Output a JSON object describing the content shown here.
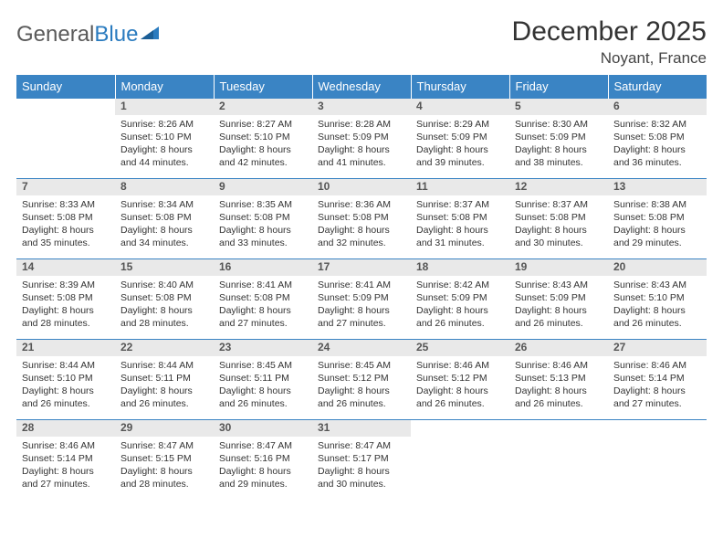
{
  "logo": {
    "text1": "General",
    "text2": "Blue"
  },
  "title": "December 2025",
  "location": "Noyant, France",
  "colors": {
    "header_bg": "#3a84c4",
    "header_text": "#ffffff",
    "daynum_bg": "#e9e9e9",
    "border": "#3a84c4",
    "body_text": "#333333"
  },
  "weekdays": [
    "Sunday",
    "Monday",
    "Tuesday",
    "Wednesday",
    "Thursday",
    "Friday",
    "Saturday"
  ],
  "weeks": [
    {
      "nums": [
        "",
        "1",
        "2",
        "3",
        "4",
        "5",
        "6"
      ],
      "cells": [
        null,
        {
          "sunrise": "8:26 AM",
          "sunset": "5:10 PM",
          "daylight": "8 hours and 44 minutes."
        },
        {
          "sunrise": "8:27 AM",
          "sunset": "5:10 PM",
          "daylight": "8 hours and 42 minutes."
        },
        {
          "sunrise": "8:28 AM",
          "sunset": "5:09 PM",
          "daylight": "8 hours and 41 minutes."
        },
        {
          "sunrise": "8:29 AM",
          "sunset": "5:09 PM",
          "daylight": "8 hours and 39 minutes."
        },
        {
          "sunrise": "8:30 AM",
          "sunset": "5:09 PM",
          "daylight": "8 hours and 38 minutes."
        },
        {
          "sunrise": "8:32 AM",
          "sunset": "5:08 PM",
          "daylight": "8 hours and 36 minutes."
        }
      ]
    },
    {
      "nums": [
        "7",
        "8",
        "9",
        "10",
        "11",
        "12",
        "13"
      ],
      "cells": [
        {
          "sunrise": "8:33 AM",
          "sunset": "5:08 PM",
          "daylight": "8 hours and 35 minutes."
        },
        {
          "sunrise": "8:34 AM",
          "sunset": "5:08 PM",
          "daylight": "8 hours and 34 minutes."
        },
        {
          "sunrise": "8:35 AM",
          "sunset": "5:08 PM",
          "daylight": "8 hours and 33 minutes."
        },
        {
          "sunrise": "8:36 AM",
          "sunset": "5:08 PM",
          "daylight": "8 hours and 32 minutes."
        },
        {
          "sunrise": "8:37 AM",
          "sunset": "5:08 PM",
          "daylight": "8 hours and 31 minutes."
        },
        {
          "sunrise": "8:37 AM",
          "sunset": "5:08 PM",
          "daylight": "8 hours and 30 minutes."
        },
        {
          "sunrise": "8:38 AM",
          "sunset": "5:08 PM",
          "daylight": "8 hours and 29 minutes."
        }
      ]
    },
    {
      "nums": [
        "14",
        "15",
        "16",
        "17",
        "18",
        "19",
        "20"
      ],
      "cells": [
        {
          "sunrise": "8:39 AM",
          "sunset": "5:08 PM",
          "daylight": "8 hours and 28 minutes."
        },
        {
          "sunrise": "8:40 AM",
          "sunset": "5:08 PM",
          "daylight": "8 hours and 28 minutes."
        },
        {
          "sunrise": "8:41 AM",
          "sunset": "5:08 PM",
          "daylight": "8 hours and 27 minutes."
        },
        {
          "sunrise": "8:41 AM",
          "sunset": "5:09 PM",
          "daylight": "8 hours and 27 minutes."
        },
        {
          "sunrise": "8:42 AM",
          "sunset": "5:09 PM",
          "daylight": "8 hours and 26 minutes."
        },
        {
          "sunrise": "8:43 AM",
          "sunset": "5:09 PM",
          "daylight": "8 hours and 26 minutes."
        },
        {
          "sunrise": "8:43 AM",
          "sunset": "5:10 PM",
          "daylight": "8 hours and 26 minutes."
        }
      ]
    },
    {
      "nums": [
        "21",
        "22",
        "23",
        "24",
        "25",
        "26",
        "27"
      ],
      "cells": [
        {
          "sunrise": "8:44 AM",
          "sunset": "5:10 PM",
          "daylight": "8 hours and 26 minutes."
        },
        {
          "sunrise": "8:44 AM",
          "sunset": "5:11 PM",
          "daylight": "8 hours and 26 minutes."
        },
        {
          "sunrise": "8:45 AM",
          "sunset": "5:11 PM",
          "daylight": "8 hours and 26 minutes."
        },
        {
          "sunrise": "8:45 AM",
          "sunset": "5:12 PM",
          "daylight": "8 hours and 26 minutes."
        },
        {
          "sunrise": "8:46 AM",
          "sunset": "5:12 PM",
          "daylight": "8 hours and 26 minutes."
        },
        {
          "sunrise": "8:46 AM",
          "sunset": "5:13 PM",
          "daylight": "8 hours and 26 minutes."
        },
        {
          "sunrise": "8:46 AM",
          "sunset": "5:14 PM",
          "daylight": "8 hours and 27 minutes."
        }
      ]
    },
    {
      "nums": [
        "28",
        "29",
        "30",
        "31",
        "",
        "",
        ""
      ],
      "cells": [
        {
          "sunrise": "8:46 AM",
          "sunset": "5:14 PM",
          "daylight": "8 hours and 27 minutes."
        },
        {
          "sunrise": "8:47 AM",
          "sunset": "5:15 PM",
          "daylight": "8 hours and 28 minutes."
        },
        {
          "sunrise": "8:47 AM",
          "sunset": "5:16 PM",
          "daylight": "8 hours and 29 minutes."
        },
        {
          "sunrise": "8:47 AM",
          "sunset": "5:17 PM",
          "daylight": "8 hours and 30 minutes."
        },
        null,
        null,
        null
      ]
    }
  ],
  "labels": {
    "sunrise": "Sunrise: ",
    "sunset": "Sunset: ",
    "daylight": "Daylight: "
  }
}
